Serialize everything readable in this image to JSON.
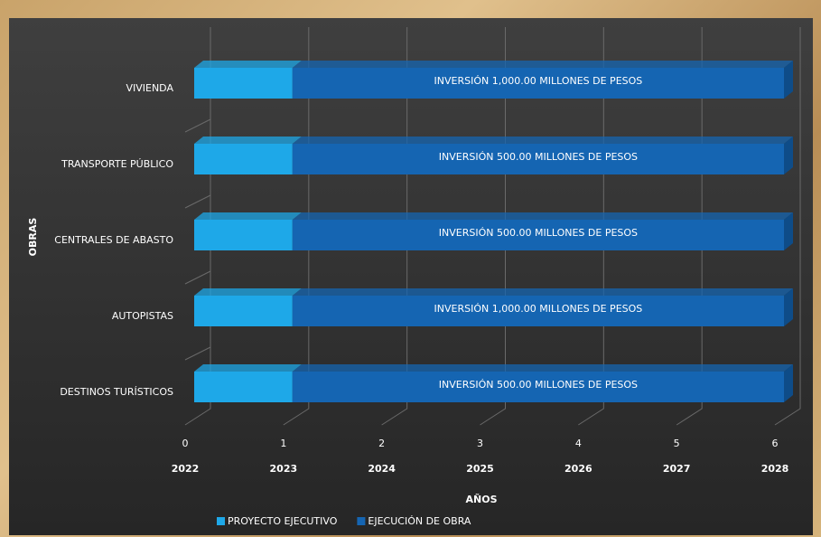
{
  "chart_data": {
    "type": "stacked_bar_horizontal",
    "y_axis_label": "OBRAS",
    "x_axis_label": "AÑOS",
    "categories": [
      "VIVIENDA",
      "TRANSPORTE PÚBLICO",
      "CENTRALES DE ABASTO",
      "AUTOPISTAS",
      "DESTINOS TURÍSTICOS"
    ],
    "series": [
      {
        "name": "PROYECTO EJECUTIVO",
        "color": "#1ea8e8",
        "values": [
          1,
          1,
          1,
          1,
          1
        ]
      },
      {
        "name": "EJECUCIÓN DE OBRA",
        "color": "#1565b2",
        "values": [
          5,
          5,
          5,
          5,
          5
        ]
      }
    ],
    "annotations": [
      "INVERSIÓN 1,000.00 MILLONES DE PESOS",
      "INVERSIÓN 500.00 MILLONES DE PESOS",
      "INVERSIÓN 500.00 MILLONES DE PESOS",
      "INVERSIÓN 1,000.00 MILLONES DE PESOS",
      "INVERSIÓN 500.00 MILLONES DE PESOS"
    ],
    "xlim": [
      0,
      6
    ],
    "xticks": [
      0,
      1,
      2,
      3,
      4,
      5,
      6
    ],
    "year_labels": [
      "2022",
      "2023",
      "2024",
      "2025",
      "2026",
      "2027",
      "2028"
    ],
    "grid": true,
    "legend": "bottom"
  }
}
